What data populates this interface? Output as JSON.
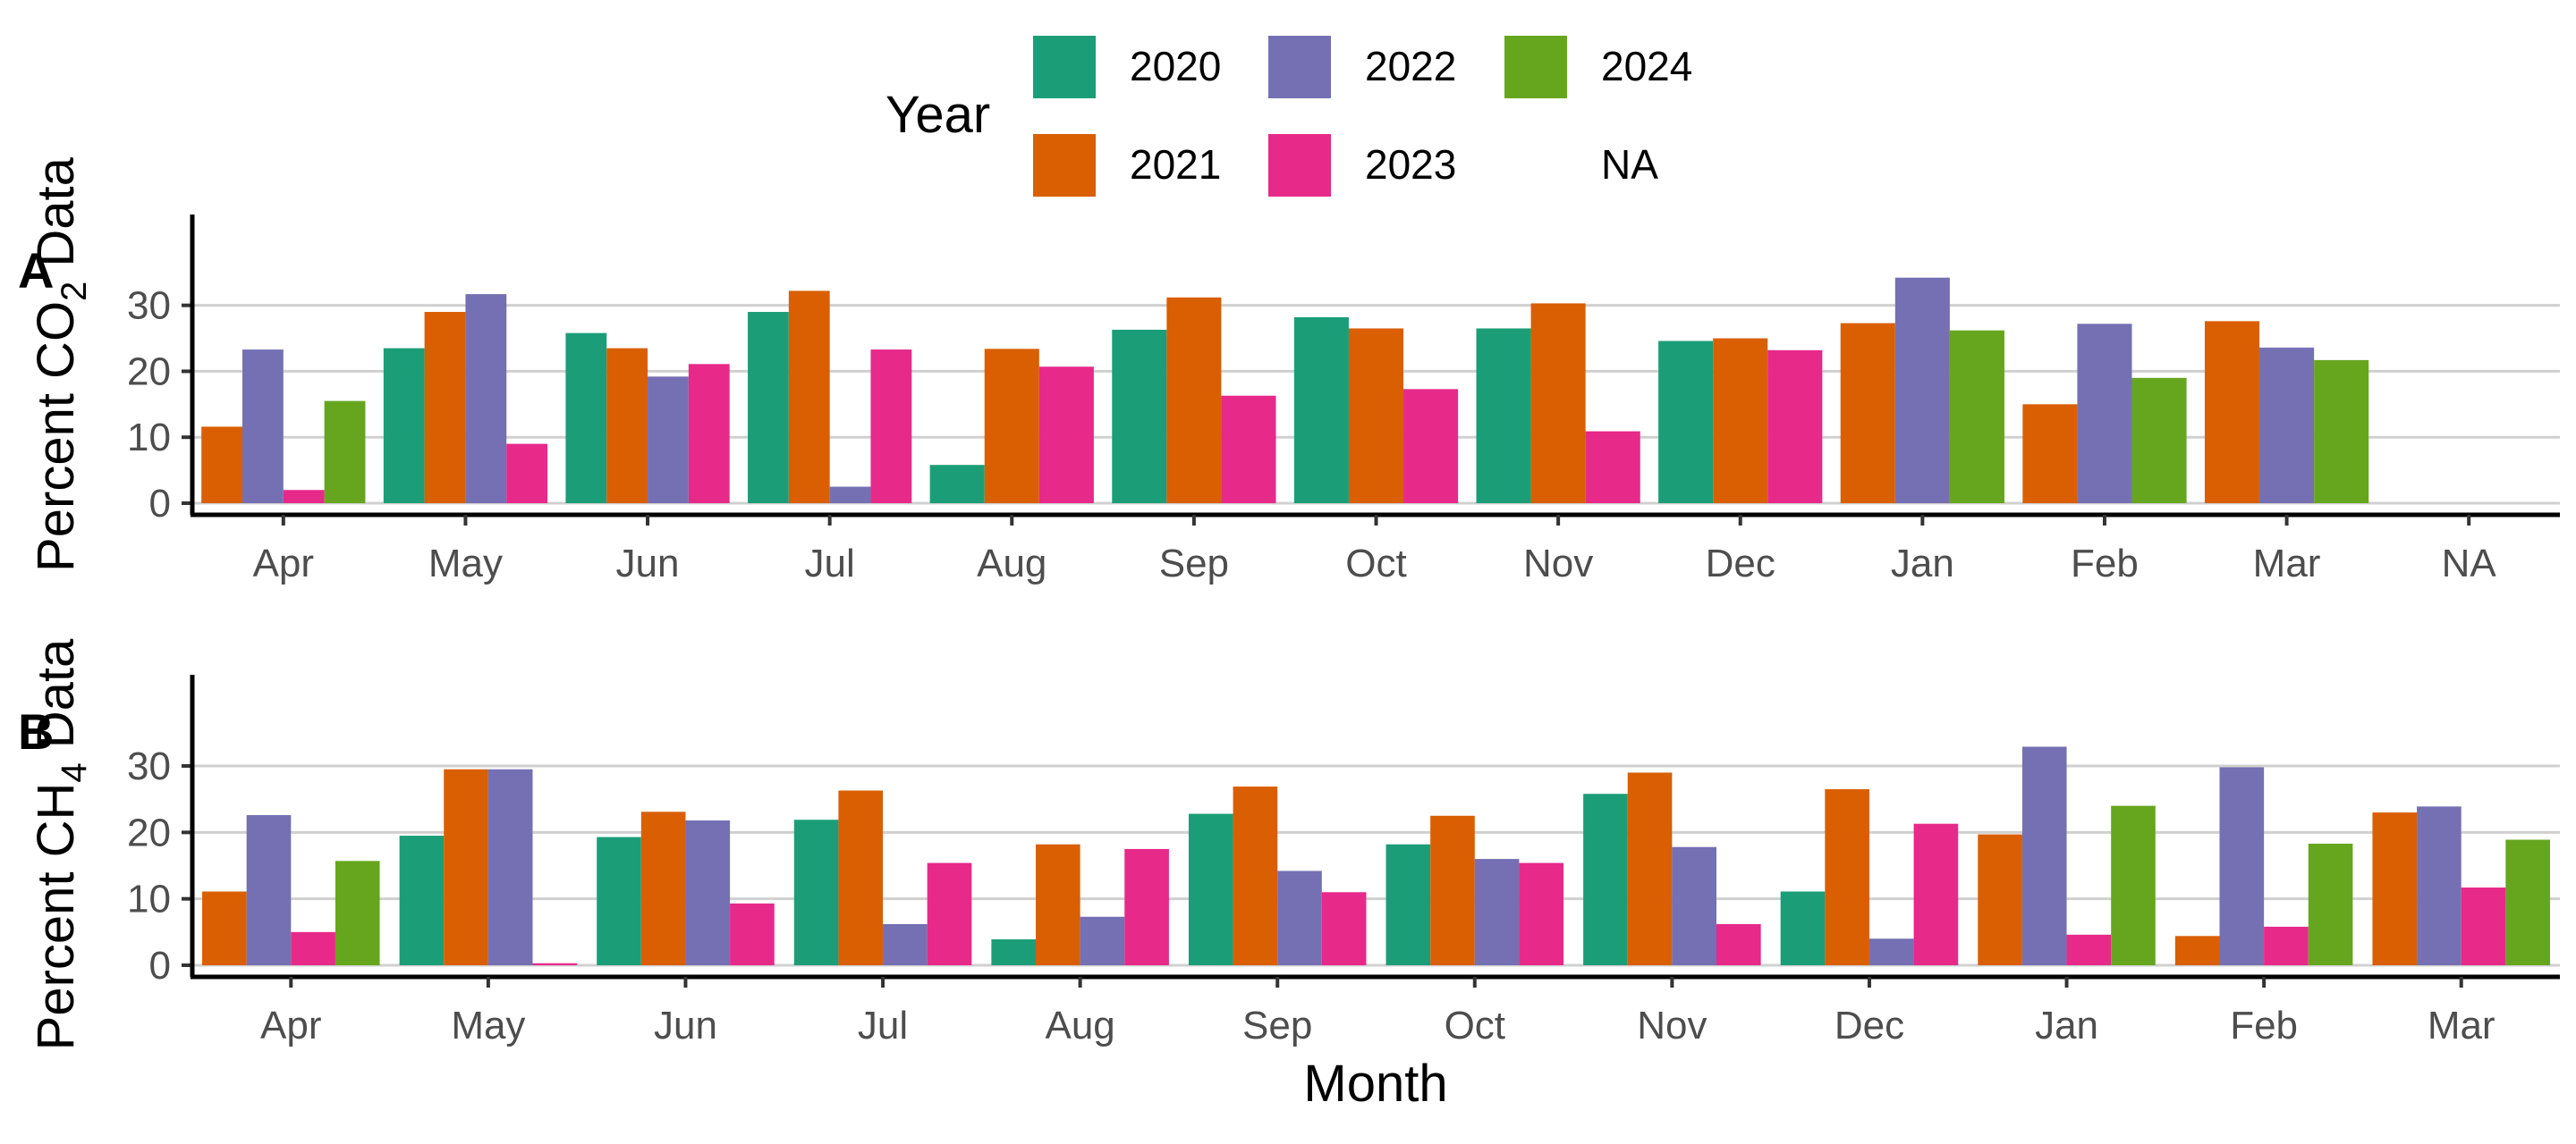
{
  "legend": {
    "title": "Year",
    "items": [
      {
        "label": "2020",
        "color": "#1b9e77"
      },
      {
        "label": "2022",
        "color": "#7570b3"
      },
      {
        "label": "2024",
        "color": "#66a61e"
      },
      {
        "label": "2021",
        "color": "#d95f02"
      },
      {
        "label": "2023",
        "color": "#e7298a"
      },
      {
        "label": "NA",
        "color": ""
      }
    ]
  },
  "xlabel": "Month",
  "chart_data": [
    {
      "type": "bar",
      "panel_tag": "A",
      "ylabel_main": "Percent CO",
      "ylabel_sub": "2",
      "ylabel_tail": " Data",
      "categories": [
        "Apr",
        "May",
        "Jun",
        "Jul",
        "Aug",
        "Sep",
        "Oct",
        "Nov",
        "Dec",
        "Jan",
        "Feb",
        "Mar",
        "NA"
      ],
      "yticks": [
        0,
        10,
        20,
        30
      ],
      "ylim": [
        0,
        37
      ],
      "grid": true,
      "series": [
        {
          "name": "2020",
          "values": [
            null,
            23.5,
            25.8,
            29.0,
            5.8,
            26.3,
            28.2,
            26.5,
            24.6,
            null,
            null,
            null,
            null
          ]
        },
        {
          "name": "2021",
          "values": [
            11.6,
            29.0,
            23.5,
            32.2,
            23.4,
            31.2,
            26.5,
            30.3,
            25.0,
            27.3,
            15.0,
            27.6,
            null
          ]
        },
        {
          "name": "2022",
          "values": [
            23.3,
            31.7,
            19.2,
            2.5,
            null,
            null,
            null,
            null,
            null,
            34.2,
            27.2,
            23.6,
            null
          ]
        },
        {
          "name": "2023",
          "values": [
            2.0,
            9.0,
            21.1,
            23.3,
            20.7,
            16.3,
            17.3,
            10.9,
            23.2,
            null,
            null,
            null,
            null
          ]
        },
        {
          "name": "2024",
          "values": [
            15.5,
            null,
            null,
            null,
            null,
            null,
            null,
            null,
            null,
            26.2,
            19.0,
            21.7,
            null
          ]
        }
      ]
    },
    {
      "type": "bar",
      "panel_tag": "B",
      "ylabel_main": "Percent CH",
      "ylabel_sub": "4",
      "ylabel_tail": " Data",
      "categories": [
        "Apr",
        "May",
        "Jun",
        "Jul",
        "Aug",
        "Sep",
        "Oct",
        "Nov",
        "Dec",
        "Jan",
        "Feb",
        "Mar"
      ],
      "yticks": [
        0,
        10,
        20,
        30
      ],
      "ylim": [
        0,
        37
      ],
      "grid": true,
      "series": [
        {
          "name": "2020",
          "values": [
            null,
            19.5,
            19.3,
            21.9,
            3.9,
            22.8,
            18.2,
            25.8,
            11.1,
            null,
            null,
            null
          ]
        },
        {
          "name": "2021",
          "values": [
            11.1,
            29.5,
            23.1,
            26.3,
            18.2,
            26.9,
            22.5,
            29.0,
            26.5,
            19.7,
            4.4,
            23.0
          ]
        },
        {
          "name": "2022",
          "values": [
            22.6,
            29.5,
            21.8,
            6.2,
            7.3,
            14.2,
            16.0,
            17.8,
            4.0,
            32.9,
            29.8,
            23.9
          ]
        },
        {
          "name": "2023",
          "values": [
            5.0,
            0.3,
            9.3,
            15.4,
            17.5,
            11.0,
            15.4,
            6.2,
            21.3,
            4.6,
            5.8,
            11.7
          ]
        },
        {
          "name": "2024",
          "values": [
            15.7,
            null,
            null,
            null,
            null,
            null,
            null,
            null,
            null,
            24.0,
            18.3,
            18.9
          ]
        }
      ]
    }
  ]
}
